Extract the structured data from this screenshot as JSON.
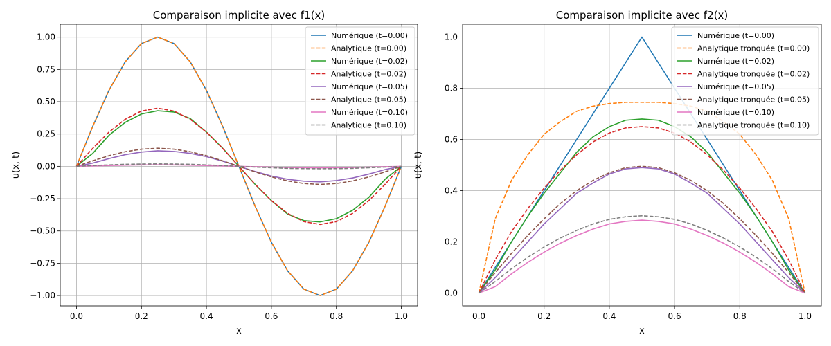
{
  "chart_data": [
    {
      "type": "line",
      "title": "Comparaison implicite avec f1(x)",
      "xlabel": "x",
      "ylabel": "u(x, t)",
      "xlim": [
        -0.05,
        1.05
      ],
      "ylim": [
        -1.08,
        1.1
      ],
      "xticks": [
        "0.0",
        "0.2",
        "0.4",
        "0.6",
        "0.8",
        "1.0"
      ],
      "xtick_values": [
        0,
        0.2,
        0.4,
        0.6,
        0.8,
        1.0
      ],
      "yticks": [
        "−1.00",
        "−0.75",
        "−0.50",
        "−0.25",
        "0.00",
        "0.25",
        "0.50",
        "0.75",
        "1.00"
      ],
      "ytick_values": [
        -1.0,
        -0.75,
        -0.5,
        -0.25,
        0.0,
        0.25,
        0.5,
        0.75,
        1.0
      ],
      "grid": true,
      "legend_position": "top-right",
      "x": [
        0,
        0.05,
        0.1,
        0.15,
        0.2,
        0.25,
        0.3,
        0.35,
        0.4,
        0.45,
        0.5,
        0.55,
        0.6,
        0.65,
        0.7,
        0.75,
        0.8,
        0.85,
        0.9,
        0.95,
        1.0
      ],
      "series": [
        {
          "name": "Numérique (t=0.00)",
          "color": "#1f77b4",
          "dash": "solid",
          "values": [
            0,
            0.309,
            0.588,
            0.809,
            0.951,
            1.0,
            0.951,
            0.809,
            0.588,
            0.309,
            0,
            -0.309,
            -0.588,
            -0.809,
            -0.951,
            -1.0,
            -0.951,
            -0.809,
            -0.588,
            -0.309,
            0
          ]
        },
        {
          "name": "Analytique (t=0.00)",
          "color": "#ff7f0e",
          "dash": "dashed",
          "values": [
            0,
            0.309,
            0.588,
            0.809,
            0.951,
            1.0,
            0.951,
            0.809,
            0.588,
            0.309,
            0,
            -0.309,
            -0.588,
            -0.809,
            -0.951,
            -1.0,
            -0.951,
            -0.809,
            -0.588,
            -0.309,
            0
          ]
        },
        {
          "name": "Numérique (t=0.02)",
          "color": "#2ca02c",
          "dash": "solid",
          "values": [
            0,
            0.1,
            0.24,
            0.34,
            0.405,
            0.43,
            0.42,
            0.37,
            0.265,
            0.14,
            0,
            -0.14,
            -0.265,
            -0.37,
            -0.42,
            -0.43,
            -0.405,
            -0.34,
            -0.24,
            -0.1,
            0
          ]
        },
        {
          "name": "Analytique (t=0.02)",
          "color": "#d62728",
          "dash": "dashed",
          "values": [
            0,
            0.139,
            0.265,
            0.364,
            0.428,
            0.45,
            0.428,
            0.364,
            0.265,
            0.139,
            0,
            -0.139,
            -0.265,
            -0.364,
            -0.428,
            -0.45,
            -0.428,
            -0.364,
            -0.265,
            -0.139,
            0
          ]
        },
        {
          "name": "Numérique (t=0.05)",
          "color": "#9467bd",
          "dash": "solid",
          "values": [
            0,
            0.025,
            0.06,
            0.09,
            0.11,
            0.12,
            0.115,
            0.1,
            0.075,
            0.04,
            0,
            -0.04,
            -0.075,
            -0.1,
            -0.115,
            -0.12,
            -0.11,
            -0.09,
            -0.06,
            -0.025,
            0
          ]
        },
        {
          "name": "Analytique (t=0.05)",
          "color": "#8c564b",
          "dash": "dashed",
          "values": [
            0,
            0.043,
            0.082,
            0.113,
            0.133,
            0.14,
            0.133,
            0.113,
            0.082,
            0.043,
            0,
            -0.043,
            -0.082,
            -0.113,
            -0.133,
            -0.14,
            -0.133,
            -0.113,
            -0.082,
            -0.043,
            0
          ]
        },
        {
          "name": "Numérique (t=0.10)",
          "color": "#e377c2",
          "dash": "solid",
          "values": [
            0,
            0.003,
            0.006,
            0.009,
            0.011,
            0.012,
            0.011,
            0.009,
            0.006,
            0.003,
            0,
            -0.003,
            -0.006,
            -0.009,
            -0.011,
            -0.012,
            -0.011,
            -0.009,
            -0.006,
            -0.003,
            0
          ]
        },
        {
          "name": "Analytique (t=0.10)",
          "color": "#7f7f7f",
          "dash": "dashed",
          "values": [
            0,
            0.006,
            0.011,
            0.016,
            0.018,
            0.019,
            0.018,
            0.016,
            0.011,
            0.006,
            0,
            -0.006,
            -0.011,
            -0.016,
            -0.018,
            -0.019,
            -0.018,
            -0.016,
            -0.011,
            -0.006,
            0
          ]
        }
      ]
    },
    {
      "type": "line",
      "title": "Comparaison implicite avec f2(x)",
      "xlabel": "x",
      "ylabel": "u(x, t)",
      "xlim": [
        -0.05,
        1.05
      ],
      "ylim": [
        -0.05,
        1.05
      ],
      "xticks": [
        "0.0",
        "0.2",
        "0.4",
        "0.6",
        "0.8",
        "1.0"
      ],
      "xtick_values": [
        0,
        0.2,
        0.4,
        0.6,
        0.8,
        1.0
      ],
      "yticks": [
        "0.0",
        "0.2",
        "0.4",
        "0.6",
        "0.8",
        "1.0"
      ],
      "ytick_values": [
        0,
        0.2,
        0.4,
        0.6,
        0.8,
        1.0
      ],
      "grid": true,
      "legend_position": "top-right",
      "x": [
        0,
        0.05,
        0.1,
        0.15,
        0.2,
        0.25,
        0.3,
        0.35,
        0.4,
        0.45,
        0.5,
        0.55,
        0.6,
        0.65,
        0.7,
        0.75,
        0.8,
        0.85,
        0.9,
        0.95,
        1.0
      ],
      "series": [
        {
          "name": "Numérique (t=0.00)",
          "color": "#1f77b4",
          "dash": "solid",
          "values": [
            0,
            0.1,
            0.2,
            0.3,
            0.4,
            0.5,
            0.6,
            0.7,
            0.8,
            0.9,
            1.0,
            0.9,
            0.8,
            0.7,
            0.6,
            0.5,
            0.4,
            0.3,
            0.2,
            0.1,
            0
          ]
        },
        {
          "name": "Analytique tronquée (t=0.00)",
          "color": "#ff7f0e",
          "dash": "dashed",
          "values": [
            0,
            0.29,
            0.44,
            0.54,
            0.62,
            0.67,
            0.71,
            0.73,
            0.74,
            0.745,
            0.745,
            0.745,
            0.74,
            0.73,
            0.71,
            0.67,
            0.62,
            0.54,
            0.44,
            0.29,
            0
          ]
        },
        {
          "name": "Numérique (t=0.02)",
          "color": "#2ca02c",
          "dash": "solid",
          "values": [
            0,
            0.09,
            0.2,
            0.3,
            0.39,
            0.47,
            0.55,
            0.61,
            0.65,
            0.675,
            0.68,
            0.675,
            0.65,
            0.61,
            0.55,
            0.47,
            0.39,
            0.3,
            0.2,
            0.09,
            0
          ]
        },
        {
          "name": "Analytique tronquée (t=0.02)",
          "color": "#d62728",
          "dash": "dashed",
          "values": [
            0,
            0.13,
            0.24,
            0.33,
            0.41,
            0.48,
            0.54,
            0.59,
            0.625,
            0.645,
            0.65,
            0.645,
            0.625,
            0.59,
            0.54,
            0.48,
            0.41,
            0.33,
            0.24,
            0.13,
            0
          ]
        },
        {
          "name": "Numérique (t=0.05)",
          "color": "#9467bd",
          "dash": "solid",
          "values": [
            0,
            0.06,
            0.13,
            0.2,
            0.27,
            0.33,
            0.39,
            0.43,
            0.465,
            0.485,
            0.49,
            0.485,
            0.465,
            0.43,
            0.39,
            0.33,
            0.27,
            0.2,
            0.13,
            0.06,
            0
          ]
        },
        {
          "name": "Analytique tronquée (t=0.05)",
          "color": "#8c564b",
          "dash": "dashed",
          "values": [
            0,
            0.08,
            0.155,
            0.225,
            0.29,
            0.35,
            0.4,
            0.44,
            0.47,
            0.49,
            0.495,
            0.49,
            0.47,
            0.44,
            0.4,
            0.35,
            0.29,
            0.225,
            0.155,
            0.08,
            0
          ]
        },
        {
          "name": "Numérique (t=0.10)",
          "color": "#e377c2",
          "dash": "solid",
          "values": [
            0,
            0.025,
            0.075,
            0.12,
            0.16,
            0.195,
            0.225,
            0.25,
            0.27,
            0.28,
            0.285,
            0.28,
            0.27,
            0.25,
            0.225,
            0.195,
            0.16,
            0.12,
            0.075,
            0.025,
            0
          ]
        },
        {
          "name": "Analytique tronquée (t=0.10)",
          "color": "#7f7f7f",
          "dash": "dashed",
          "values": [
            0,
            0.045,
            0.095,
            0.14,
            0.18,
            0.215,
            0.245,
            0.27,
            0.288,
            0.298,
            0.302,
            0.298,
            0.288,
            0.27,
            0.245,
            0.215,
            0.18,
            0.14,
            0.095,
            0.045,
            0
          ]
        }
      ]
    }
  ]
}
